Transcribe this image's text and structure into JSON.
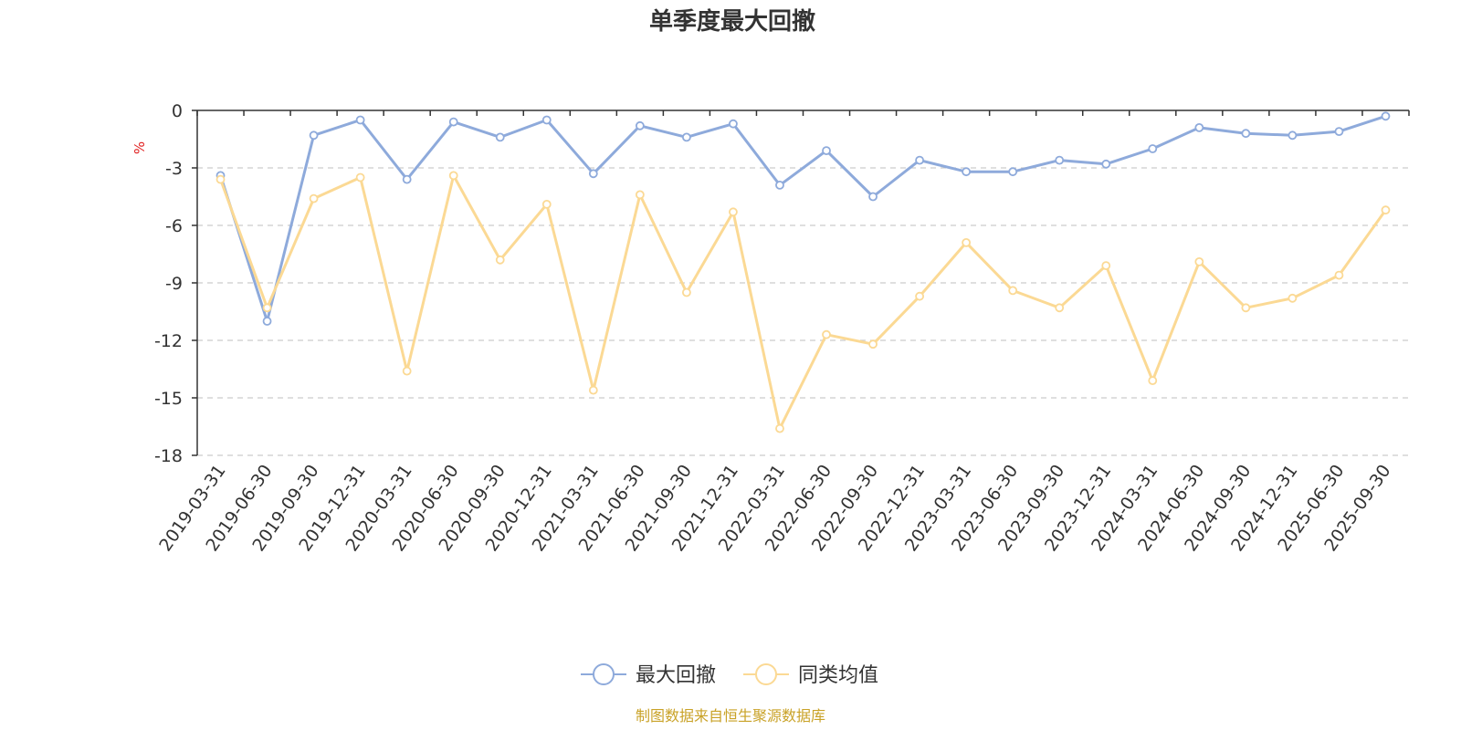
{
  "chart_data": {
    "type": "line",
    "title": "单季度最大回撤",
    "ylabel": "%",
    "ylim": [
      -18,
      0
    ],
    "yticks": [
      0,
      -3,
      -6,
      -9,
      -12,
      -15,
      -18
    ],
    "grid": true,
    "legend_position": "bottom",
    "categories": [
      "2019-03-31",
      "2019-06-30",
      "2019-09-30",
      "2019-12-31",
      "2020-03-31",
      "2020-06-30",
      "2020-09-30",
      "2020-12-31",
      "2021-03-31",
      "2021-06-30",
      "2021-09-30",
      "2021-12-31",
      "2022-03-31",
      "2022-06-30",
      "2022-09-30",
      "2022-12-31",
      "2023-03-31",
      "2023-06-30",
      "2023-09-30",
      "2023-12-31",
      "2024-03-31",
      "2024-06-30",
      "2024-09-30",
      "2024-12-31",
      "2025-06-30",
      "2025-09-30"
    ],
    "series": [
      {
        "name": "最大回撤",
        "color": "#8eaadb",
        "values": [
          -3.4,
          -11.0,
          -1.3,
          -0.5,
          -3.6,
          -0.6,
          -1.4,
          -0.5,
          -3.3,
          -0.8,
          -1.4,
          -0.7,
          -3.9,
          -2.1,
          -4.5,
          -2.6,
          -3.2,
          -3.2,
          -2.6,
          -2.8,
          -2.0,
          -0.9,
          -1.2,
          -1.3,
          -1.1,
          -0.3
        ]
      },
      {
        "name": "同类均值",
        "color": "#fbd994",
        "values": [
          -3.6,
          -10.3,
          -4.6,
          -3.5,
          -13.6,
          -3.4,
          -7.8,
          -4.9,
          -14.6,
          -4.4,
          -9.5,
          -5.3,
          -16.6,
          -11.7,
          -12.2,
          -9.7,
          -6.9,
          -9.4,
          -10.3,
          -8.1,
          -14.1,
          -7.9,
          -10.3,
          -9.8,
          -8.6,
          -5.2
        ]
      }
    ]
  },
  "source_text": "制图数据来自恒生聚源数据库"
}
